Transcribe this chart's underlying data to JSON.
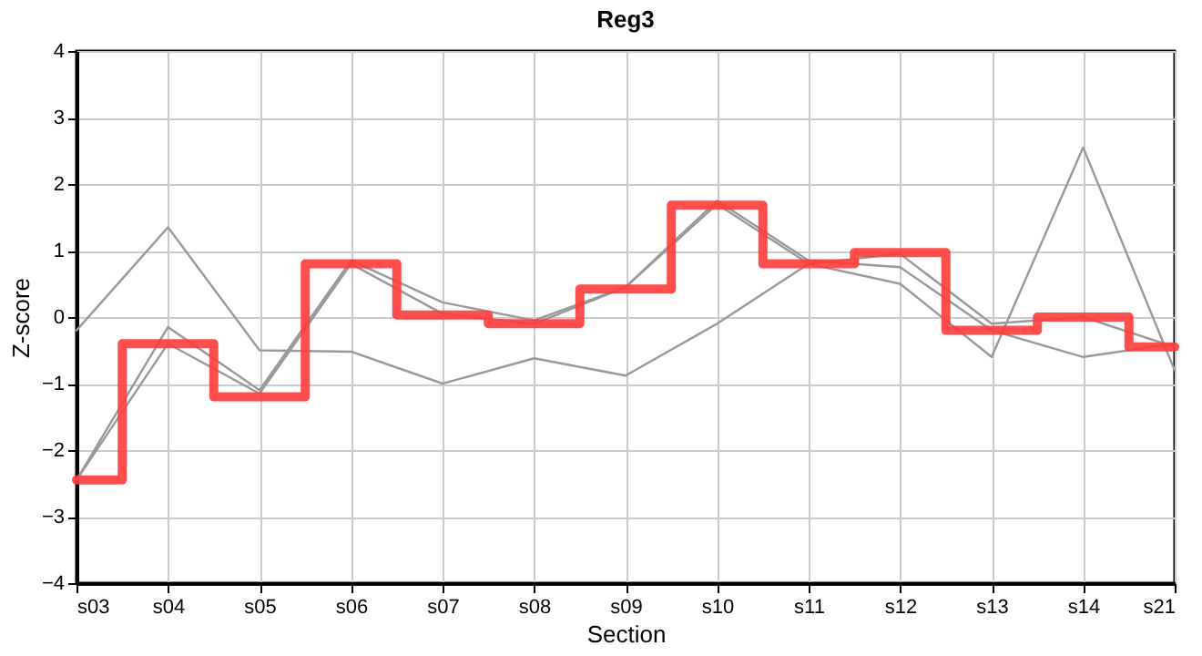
{
  "chart_data": {
    "type": "line",
    "title": "Reg3",
    "xlabel": "Section",
    "ylabel": "Z-score",
    "categories": [
      "s03",
      "s04",
      "s05",
      "s06",
      "s07",
      "s08",
      "s09",
      "s10",
      "s11",
      "s12",
      "s13",
      "s14",
      "s21"
    ],
    "ylim": [
      -4,
      4
    ],
    "yticks": [
      -4,
      -3,
      -2,
      -1,
      0,
      1,
      2,
      3,
      4
    ],
    "grid": true,
    "series": [
      {
        "color": "#999999",
        "values": [
          -0.2,
          1.35,
          -0.5,
          -0.52,
          -1.0,
          -0.62,
          -0.88,
          -0.1,
          0.8,
          0.5,
          -0.6,
          2.55,
          -0.8
        ]
      },
      {
        "color": "#999999",
        "values": [
          -2.45,
          -0.15,
          -1.1,
          0.85,
          0.22,
          -0.05,
          0.45,
          1.75,
          0.85,
          0.75,
          -0.2,
          -0.6,
          -0.4
        ]
      },
      {
        "color": "#999999",
        "values": [
          -2.45,
          -0.4,
          -1.15,
          0.8,
          0.05,
          -0.1,
          0.45,
          1.7,
          0.8,
          0.95,
          -0.1,
          0.0,
          -0.45
        ]
      },
      {
        "type": "step",
        "color": "#ff3b3b",
        "values": [
          -2.45,
          -0.4,
          -1.2,
          0.8,
          0.03,
          -0.1,
          0.42,
          1.68,
          0.8,
          0.97,
          -0.2,
          0.0,
          -0.45
        ]
      }
    ]
  }
}
